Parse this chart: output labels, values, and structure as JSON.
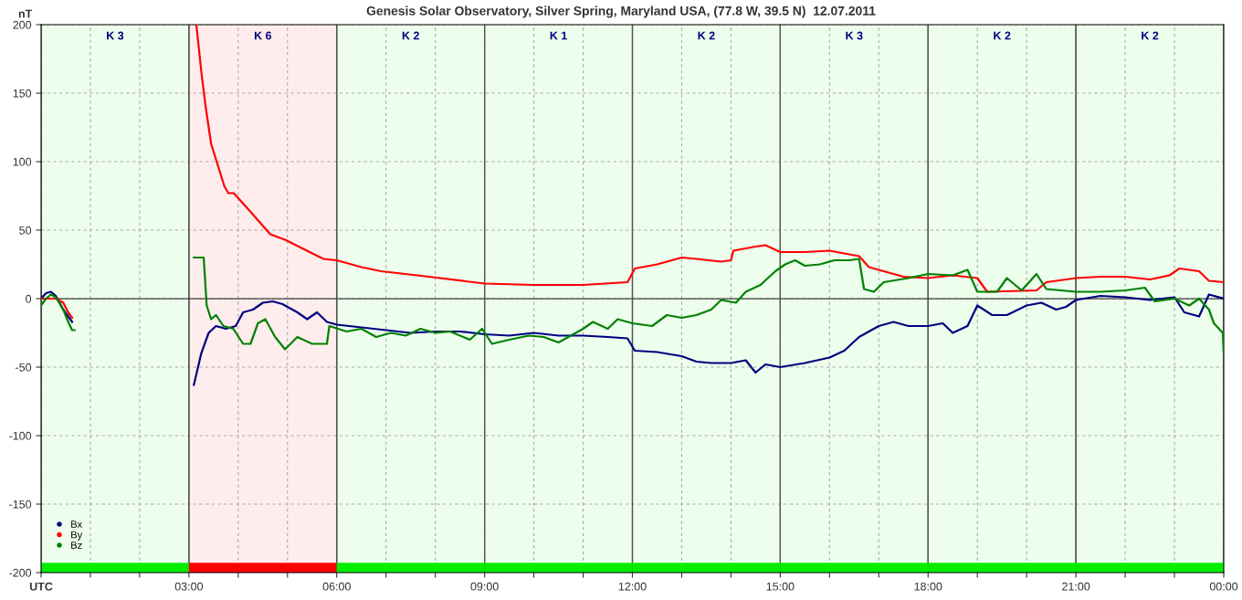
{
  "chart_data": {
    "type": "line",
    "title": "Genesis Solar Observatory, Silver Spring, Maryland USA, (77.8 W, 39.5 N)  12.07.2011",
    "ylabel": "nT",
    "xlim": [
      0,
      24
    ],
    "ylim": [
      -200,
      200
    ],
    "xticks": [
      {
        "value": 0,
        "label": "UTC"
      },
      {
        "value": 1,
        "label": null
      },
      {
        "value": 2,
        "label": null
      },
      {
        "value": 3,
        "label": "03:00"
      },
      {
        "value": 4,
        "label": null
      },
      {
        "value": 5,
        "label": null
      },
      {
        "value": 6,
        "label": "06:00"
      },
      {
        "value": 7,
        "label": null
      },
      {
        "value": 8,
        "label": null
      },
      {
        "value": 9,
        "label": "09:00"
      },
      {
        "value": 10,
        "label": null
      },
      {
        "value": 11,
        "label": null
      },
      {
        "value": 12,
        "label": "12:00"
      },
      {
        "value": 13,
        "label": null
      },
      {
        "value": 14,
        "label": null
      },
      {
        "value": 15,
        "label": "15:00"
      },
      {
        "value": 16,
        "label": null
      },
      {
        "value": 17,
        "label": null
      },
      {
        "value": 18,
        "label": "18:00"
      },
      {
        "value": 19,
        "label": null
      },
      {
        "value": 20,
        "label": null
      },
      {
        "value": 21,
        "label": "21:00"
      },
      {
        "value": 22,
        "label": null
      },
      {
        "value": 23,
        "label": null
      },
      {
        "value": 24,
        "label": "00:00"
      }
    ],
    "yticks": [
      -200,
      -150,
      -100,
      -50,
      0,
      50,
      100,
      150,
      200
    ],
    "grid": true,
    "legend": "bottom left",
    "line_style": "solid",
    "ref_lines": [
      {
        "axis": "y",
        "value": 0,
        "color": "#404040",
        "line_style": "solid"
      }
    ],
    "bands": [
      {
        "axis": "x",
        "from": 0,
        "to": 3,
        "label": "K 3",
        "color": "#00ee00"
      },
      {
        "axis": "x",
        "from": 3,
        "to": 6,
        "label": "K 6",
        "color": "#ff0000"
      },
      {
        "axis": "x",
        "from": 6,
        "to": 9,
        "label": "K 2",
        "color": "#00ee00"
      },
      {
        "axis": "x",
        "from": 9,
        "to": 12,
        "label": "K 1",
        "color": "#00ee00"
      },
      {
        "axis": "x",
        "from": 12,
        "to": 15,
        "label": "K 2",
        "color": "#00ee00"
      },
      {
        "axis": "x",
        "from": 15,
        "to": 18,
        "label": "K 3",
        "color": "#00ee00"
      },
      {
        "axis": "x",
        "from": 18,
        "to": 21,
        "label": "K 2",
        "color": "#00ee00"
      },
      {
        "axis": "x",
        "from": 21,
        "to": 24,
        "label": "K 2",
        "color": "#00ee00"
      }
    ],
    "series": [
      {
        "name": "Bx",
        "color": "#000080",
        "x": [
          0,
          0.1,
          0.2,
          0.3,
          0.45,
          0.55,
          0.63,
          1.5,
          3.1,
          3.25,
          3.4,
          3.55,
          3.75,
          3.95,
          4.1,
          4.3,
          4.5,
          4.7,
          4.9,
          5.2,
          5.4,
          5.6,
          5.8,
          6.0,
          6.5,
          7,
          7.5,
          8,
          8.5,
          9,
          9.5,
          10,
          10.5,
          11,
          11.5,
          11.9,
          12.05,
          12.5,
          13,
          13.3,
          13.6,
          14,
          14.3,
          14.5,
          14.7,
          15,
          15.5,
          16,
          16.3,
          16.6,
          17.0,
          17.3,
          17.6,
          18,
          18.3,
          18.5,
          18.8,
          19.0,
          19.3,
          19.6,
          20.0,
          20.3,
          20.6,
          20.8,
          21,
          21.5,
          22,
          22.5,
          23,
          23.2,
          23.5,
          23.7,
          24
        ],
        "values": [
          0,
          4,
          5,
          2,
          -8,
          -13,
          -17,
          null,
          -63,
          -40,
          -25,
          -20,
          -22,
          -20,
          -10,
          -8,
          -3,
          -2,
          -4,
          -10,
          -15,
          -10,
          -17,
          -19,
          -21,
          -23,
          -25,
          -24,
          -24,
          -26,
          -27,
          -25,
          -27,
          -27,
          -28,
          -29,
          -38,
          -39,
          -42,
          -46,
          -47,
          -47,
          -45,
          -54,
          -48,
          -50,
          -47,
          -43,
          -38,
          -28,
          -20,
          -17,
          -20,
          -20,
          -18,
          -25,
          -20,
          -5,
          -12,
          -12,
          -5,
          -3,
          -8,
          -6,
          -1,
          2,
          1,
          -1,
          1,
          -10,
          -13,
          3,
          0
        ]
      },
      {
        "name": "By",
        "color": "#ff0000",
        "x": [
          0,
          0.1,
          0.3,
          0.45,
          0.55,
          0.63,
          1.5,
          3.15,
          3.26,
          3.34,
          3.45,
          3.72,
          3.8,
          3.91,
          4.26,
          4.65,
          4.95,
          5.34,
          5.73,
          6.0,
          6.5,
          6.9,
          7.63,
          9,
          10,
          11,
          11.9,
          12.05,
          12.5,
          13,
          13.3,
          13.8,
          14.0,
          14.05,
          14.5,
          14.7,
          15,
          15.5,
          16,
          16.6,
          16.8,
          17.2,
          17.5,
          18,
          18.5,
          19,
          19.2,
          20.2,
          20.4,
          21,
          21.5,
          22,
          22.5,
          22.9,
          23.1,
          23.5,
          23.7,
          24
        ],
        "values": [
          0,
          0,
          0,
          -3,
          -10,
          -14,
          null,
          200,
          163,
          140,
          113,
          82,
          77,
          77,
          63,
          47,
          43,
          36,
          29,
          28,
          23,
          20,
          17,
          11,
          10,
          10,
          12,
          22,
          25,
          30,
          29,
          27,
          28,
          35,
          38,
          39,
          34,
          34,
          35,
          31,
          23,
          19,
          16,
          15,
          17,
          15,
          5,
          6,
          12,
          15,
          16,
          16,
          14,
          17,
          22,
          20,
          13,
          12
        ]
      },
      {
        "name": "Bz",
        "color": "#008000",
        "x": [
          0,
          0.1,
          0.2,
          0.3,
          0.45,
          0.55,
          0.63,
          0.68,
          1.5,
          3.1,
          3.3,
          3.36,
          3.45,
          3.55,
          3.7,
          3.9,
          4.1,
          4.25,
          4.4,
          4.55,
          4.75,
          4.95,
          5.2,
          5.5,
          5.8,
          5.85,
          6.2,
          6.5,
          6.8,
          7.1,
          7.4,
          7.7,
          8,
          8.3,
          8.7,
          8.95,
          9.15,
          9.5,
          9.9,
          10.2,
          10.5,
          11,
          11.2,
          11.5,
          11.7,
          12,
          12.4,
          12.7,
          13,
          13.3,
          13.6,
          13.8,
          14.1,
          14.3,
          14.6,
          14.9,
          15.1,
          15.3,
          15.5,
          15.8,
          16.1,
          16.4,
          16.6,
          16.7,
          16.9,
          17.1,
          17.6,
          18,
          18.5,
          18.8,
          19.0,
          19.4,
          19.6,
          19.9,
          20.2,
          20.4,
          21,
          21.5,
          22,
          22.4,
          22.6,
          23,
          23.3,
          23.5,
          23.7,
          23.8,
          23.98,
          24
        ],
        "values": [
          -5,
          0,
          3,
          1,
          -8,
          -17,
          -23,
          -23,
          null,
          30,
          30,
          -5,
          -15,
          -12,
          -20,
          -22,
          -33,
          -33,
          -18,
          -15,
          -28,
          -37,
          -28,
          -33,
          -33,
          -20,
          -24,
          -22,
          -28,
          -25,
          -27,
          -22,
          -25,
          -24,
          -30,
          -22,
          -33,
          -30,
          -27,
          -28,
          -32,
          -22,
          -17,
          -22,
          -15,
          -18,
          -20,
          -12,
          -14,
          -12,
          -8,
          -1,
          -3,
          5,
          10,
          20,
          25,
          28,
          24,
          25,
          28,
          28,
          29,
          7,
          5,
          12,
          15,
          18,
          17,
          21,
          5,
          5,
          15,
          6,
          18,
          7,
          5,
          5,
          6,
          8,
          -2,
          0,
          -5,
          0,
          -8,
          -18,
          -25,
          -40
        ]
      }
    ]
  }
}
